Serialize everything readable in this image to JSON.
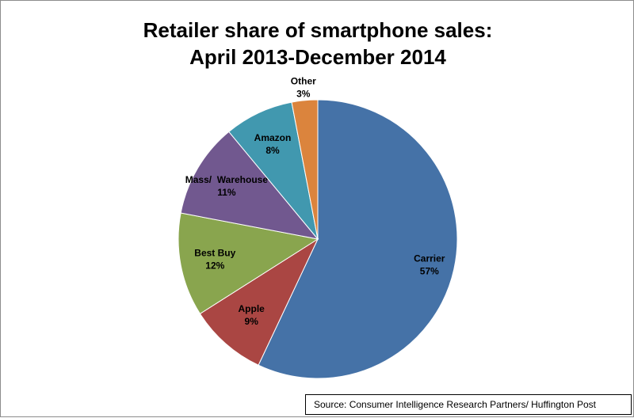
{
  "chart_data": {
    "type": "pie",
    "title_lines": [
      "Retailer share of smartphone sales:",
      "April 2013-December 2014"
    ],
    "slices": [
      {
        "name": "Carrier",
        "label": "57%",
        "value": 57,
        "color": "#4572a7"
      },
      {
        "name": "Apple",
        "label": "9%",
        "value": 9,
        "color": "#aa4643"
      },
      {
        "name": "Best Buy",
        "label": "12%",
        "value": 12,
        "color": "#89a54e"
      },
      {
        "name": "Mass/  Warehouse",
        "label": "11%",
        "value": 11,
        "color": "#71588f"
      },
      {
        "name": "Amazon",
        "label": "8%",
        "value": 8,
        "color": "#4198af"
      },
      {
        "name": "Other",
        "label": "3%",
        "value": 3,
        "color": "#db843d"
      }
    ],
    "source": "Source: Consumer Intelligence Research Partners/ Huffington Post"
  }
}
